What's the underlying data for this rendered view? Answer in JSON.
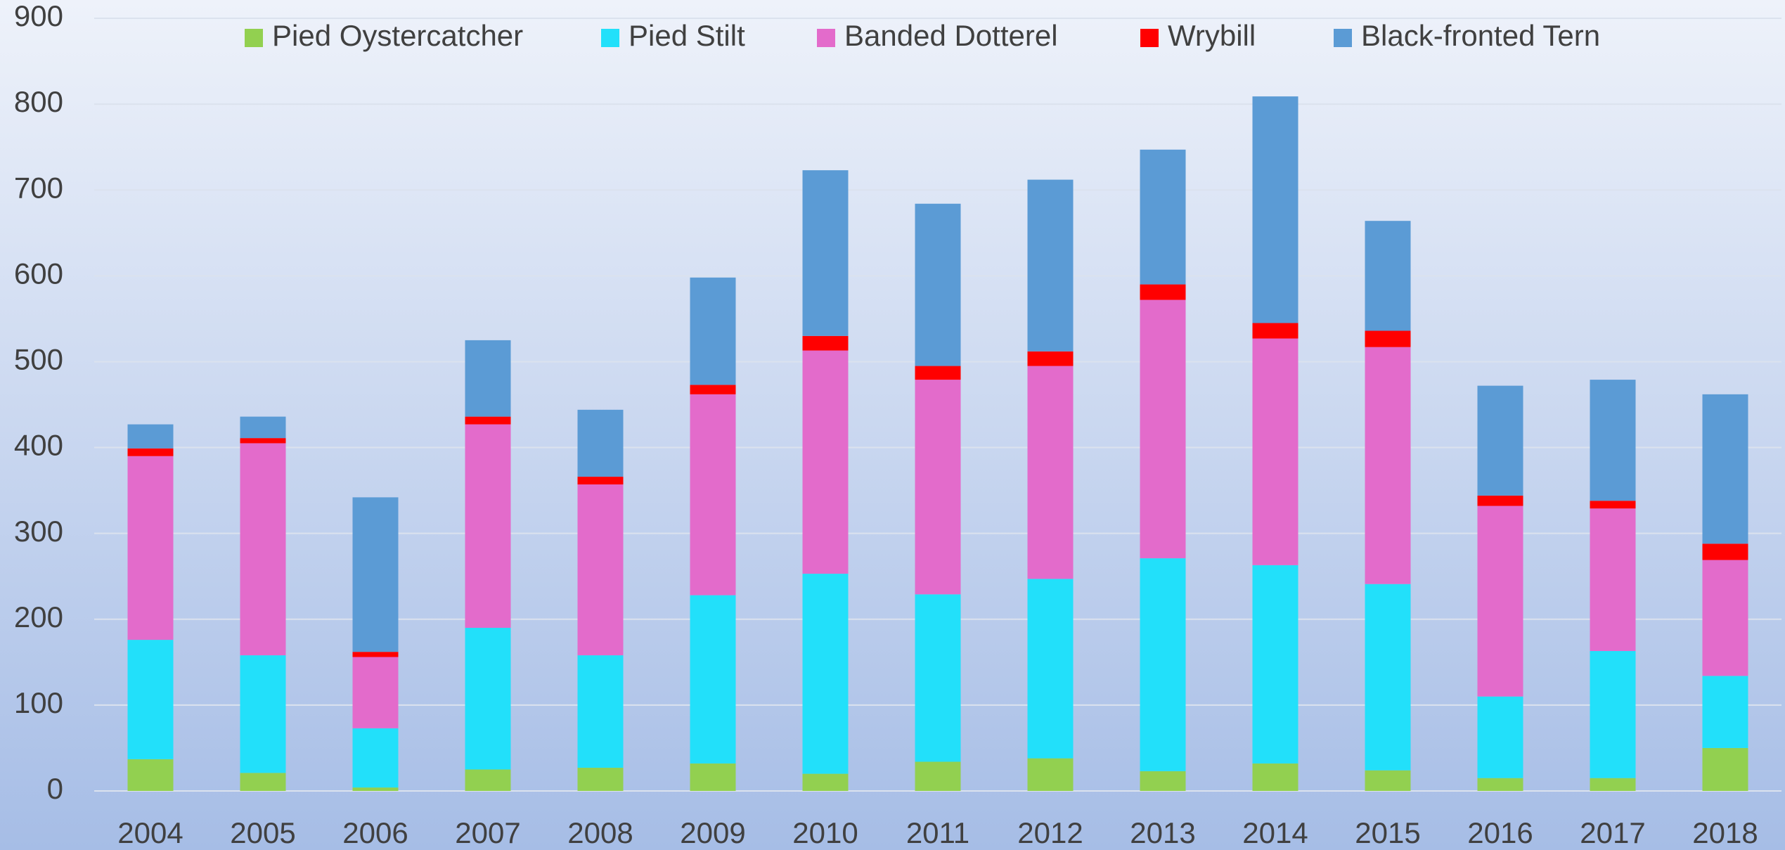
{
  "chart_data": {
    "type": "stacked_bar",
    "categories": [
      "2004",
      "2005",
      "2006",
      "2007",
      "2008",
      "2009",
      "2010",
      "2011",
      "2012",
      "2013",
      "2014",
      "2015",
      "2016",
      "2017",
      "2018"
    ],
    "series": [
      {
        "name": "Pied Oystercatcher",
        "color": "#92d050",
        "values": [
          37,
          21,
          4,
          25,
          27,
          32,
          20,
          34,
          38,
          23,
          32,
          24,
          15,
          15,
          50
        ]
      },
      {
        "name": "Pied Stilt",
        "color": "#22e0fa",
        "values": [
          139,
          137,
          69,
          165,
          131,
          196,
          233,
          195,
          209,
          248,
          231,
          217,
          95,
          148,
          84
        ]
      },
      {
        "name": "Banded Dotterel",
        "color": "#e36bcb",
        "values": [
          214,
          247,
          83,
          237,
          199,
          234,
          260,
          250,
          248,
          301,
          264,
          276,
          222,
          166,
          135
        ]
      },
      {
        "name": "Wrybill",
        "color": "#ff0000",
        "values": [
          9,
          6,
          6,
          9,
          9,
          11,
          17,
          16,
          17,
          18,
          18,
          19,
          12,
          9,
          19
        ]
      },
      {
        "name": "Black-fronted Tern",
        "color": "#5b9bd5",
        "values": [
          28,
          25,
          180,
          89,
          78,
          125,
          193,
          189,
          200,
          157,
          264,
          128,
          128,
          141,
          174
        ]
      }
    ],
    "ylim": [
      0,
      900
    ],
    "yticks": [
      0,
      100,
      200,
      300,
      400,
      500,
      600,
      700,
      800,
      900
    ],
    "grid": true,
    "legend": "top"
  }
}
